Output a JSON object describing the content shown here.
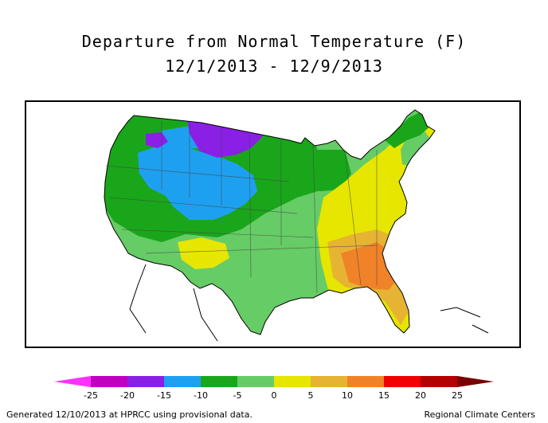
{
  "header": {
    "title": "Departure from Normal Temperature (F)",
    "date_range": "12/1/2013 - 12/9/2013"
  },
  "legend": {
    "ticks": [
      "-25",
      "-20",
      "-15",
      "-10",
      "-5",
      "0",
      "5",
      "10",
      "15",
      "20",
      "25"
    ],
    "bins": [
      {
        "from": -25,
        "to": -20,
        "color": "#c000c0"
      },
      {
        "from": -20,
        "to": -15,
        "color": "#8a1fe6"
      },
      {
        "from": -15,
        "to": -10,
        "color": "#1ea0f0"
      },
      {
        "from": -10,
        "to": -5,
        "color": "#1aa61a"
      },
      {
        "from": -5,
        "to": 0,
        "color": "#66cc66"
      },
      {
        "from": 0,
        "to": 5,
        "color": "#e6e600"
      },
      {
        "from": 5,
        "to": 10,
        "color": "#e6b432"
      },
      {
        "from": 10,
        "to": 15,
        "color": "#f08228"
      },
      {
        "from": 15,
        "to": 20,
        "color": "#f00000"
      },
      {
        "from": 20,
        "to": 25,
        "color": "#b40000"
      }
    ],
    "low_arrow_color": "#ff30ff",
    "high_arrow_color": "#780000"
  },
  "footer": {
    "left": "Generated 12/10/2013 at HPRCC using provisional data.",
    "right": "Regional Climate Centers"
  }
}
